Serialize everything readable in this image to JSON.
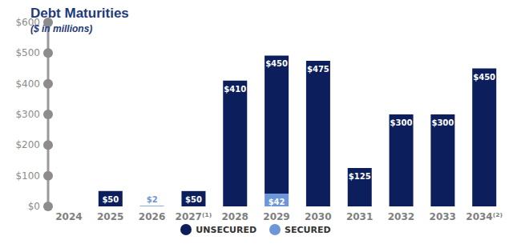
{
  "chart_data": {
    "type": "bar",
    "title": "Debt Maturities",
    "subtitle": "($ in millions)",
    "categories": [
      "2024",
      "2025",
      "2026",
      "2027⁽¹⁾",
      "2028",
      "2029",
      "2030",
      "2031",
      "2032",
      "2033",
      "2034⁽²⁾"
    ],
    "stacked": true,
    "data_labels": true,
    "legend": "bottom",
    "grid": false,
    "ylim": [
      0,
      600
    ],
    "yticks": [
      {
        "value": 0,
        "label": "$0"
      },
      {
        "value": 100,
        "label": "$100"
      },
      {
        "value": 200,
        "label": "$200"
      },
      {
        "value": 300,
        "label": "$300"
      },
      {
        "value": 400,
        "label": "$400"
      },
      {
        "value": 500,
        "label": "$500"
      },
      {
        "value": 600,
        "label": "$600"
      }
    ],
    "series": [
      {
        "name": "UNSECURED",
        "color": "#0c1f5c",
        "values": [
          null,
          50,
          null,
          50,
          410,
          450,
          475,
          125,
          300,
          300,
          450
        ],
        "value_labels": [
          null,
          "$50",
          null,
          "$50",
          "$410",
          "$450",
          "$475",
          "$125",
          "$300",
          "$300",
          "$450"
        ]
      },
      {
        "name": "SECURED",
        "color": "#6d96d8",
        "values": [
          null,
          null,
          2,
          null,
          null,
          42,
          null,
          null,
          null,
          null,
          null
        ],
        "value_labels": [
          null,
          null,
          "$2",
          null,
          null,
          "$42",
          null,
          null,
          null,
          null,
          null
        ]
      }
    ]
  }
}
